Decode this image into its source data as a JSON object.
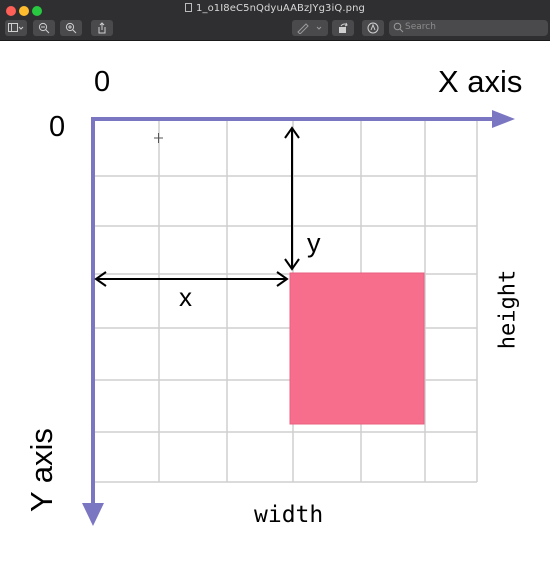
{
  "window": {
    "title": "1_o1I8eC5nQdyuAABzJYg3iQ.png",
    "search_placeholder": "Search"
  },
  "figure": {
    "x_axis_label": "X axis",
    "y_axis_label": "Y axis",
    "origin_x_label": "0",
    "origin_y_label": "0",
    "x_label": "x",
    "y_label": "y",
    "width_label": "width",
    "height_label": "height",
    "colors": {
      "axis": "#7b76c2",
      "grid": "#cfcfcf",
      "rect": "#f76d8c",
      "arrow": "#000000"
    }
  }
}
